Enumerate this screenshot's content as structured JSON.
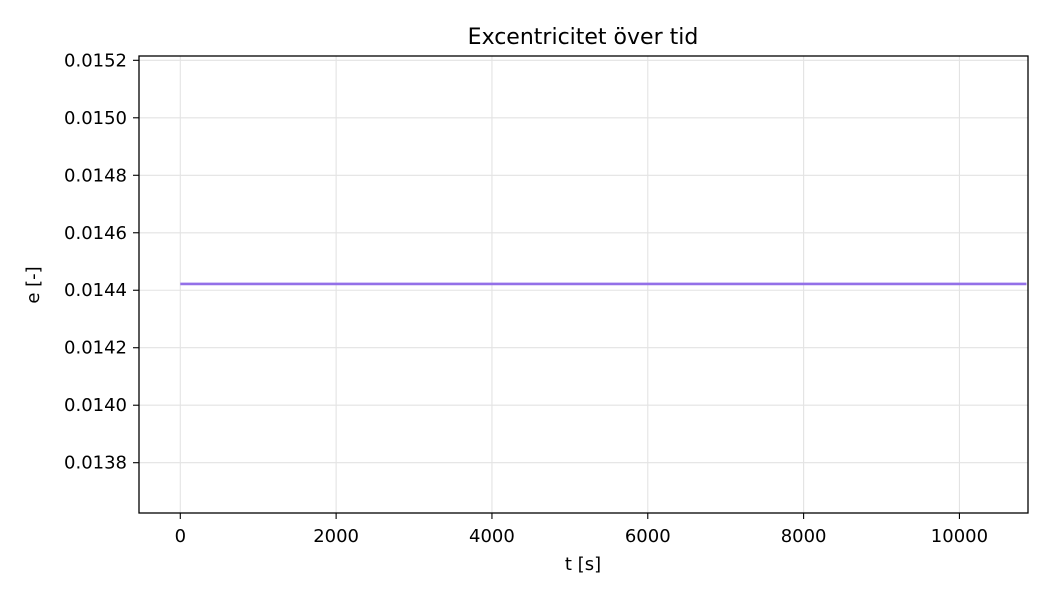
{
  "colors": {
    "series": "#9370e8",
    "grid": "#e3e3e3",
    "axes": "#000000",
    "background": "#ffffff"
  },
  "chart_data": {
    "type": "line",
    "title": "Excentricitet över tid",
    "xlabel": "t [s]",
    "ylabel": "e [-]",
    "xlim": [
      -530,
      10880
    ],
    "ylim": [
      0.013625,
      0.015215
    ],
    "grid": true,
    "legend": "none",
    "xticks": [
      0,
      2000,
      4000,
      6000,
      8000,
      10000
    ],
    "xtick_labels": [
      "0",
      "2000",
      "4000",
      "6000",
      "8000",
      "10000"
    ],
    "yticks": [
      0.0138,
      0.014,
      0.0142,
      0.0144,
      0.0146,
      0.0148,
      0.015,
      0.0152
    ],
    "ytick_labels": [
      "0.0138",
      "0.0140",
      "0.0142",
      "0.0144",
      "0.0146",
      "0.0148",
      "0.0150",
      "0.0152"
    ],
    "series": [
      {
        "x": [
          0,
          10860
        ],
        "y": [
          0.014422,
          0.014422
        ]
      }
    ]
  }
}
